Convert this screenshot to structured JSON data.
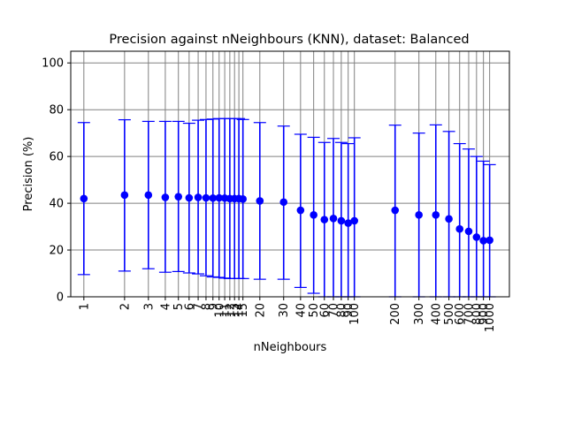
{
  "chart_data": {
    "type": "scatter",
    "title": "Precision against nNeighbours (KNN), dataset: Balanced",
    "xlabel": "nNeighbours",
    "ylabel": "Precision (%)",
    "x_scale": "log",
    "xlim": [
      0.8,
      1400
    ],
    "ylim": [
      0,
      105
    ],
    "yticks": [
      0,
      20,
      40,
      60,
      80,
      100
    ],
    "grid": true,
    "x_tick_labels": [
      "1",
      "2",
      "3",
      "4",
      "5",
      "6",
      "7",
      "8",
      "9",
      "10",
      "11",
      "12",
      "13",
      "14",
      "15",
      "20",
      "30",
      "40",
      "50",
      "60",
      "70",
      "80",
      "90",
      "100",
      "200",
      "300",
      "400",
      "500",
      "600",
      "700",
      "800",
      "900",
      "1000"
    ],
    "series": [
      {
        "color": "#0000ff",
        "x": [
          1,
          2,
          3,
          4,
          5,
          6,
          7,
          8,
          9,
          10,
          11,
          12,
          13,
          14,
          15,
          20,
          30,
          40,
          50,
          60,
          70,
          80,
          90,
          100,
          200,
          300,
          400,
          500,
          600,
          700,
          800,
          900,
          1000
        ],
        "y": [
          42,
          43.5,
          43.5,
          42.5,
          42.8,
          42.3,
          42.5,
          42.3,
          42.2,
          42.3,
          42.2,
          42,
          42,
          42,
          41.8,
          41,
          40.5,
          37,
          35,
          33,
          33.5,
          32.5,
          31.5,
          32.5,
          37,
          35,
          35,
          33.3,
          29,
          28,
          25.5,
          24,
          24.2
        ],
        "lower": [
          9.5,
          11,
          12,
          10.5,
          10.8,
          10.2,
          9.8,
          9,
          8.5,
          8.3,
          8,
          7.8,
          7.8,
          7.8,
          7.8,
          7.5,
          7.5,
          4,
          1.5,
          0,
          0,
          0,
          0,
          0,
          0,
          0,
          0,
          0,
          0,
          0,
          0,
          0,
          0
        ],
        "upper": [
          74.5,
          75.7,
          75,
          75,
          75,
          74.2,
          75.5,
          75.8,
          76,
          76.2,
          76.2,
          76.2,
          76.2,
          76.2,
          75.8,
          74.5,
          73,
          69.5,
          68.2,
          66,
          67.7,
          66,
          65.5,
          68,
          73.4,
          70,
          73.5,
          70.7,
          65.5,
          63.2,
          60,
          58,
          56.5
        ]
      }
    ]
  }
}
